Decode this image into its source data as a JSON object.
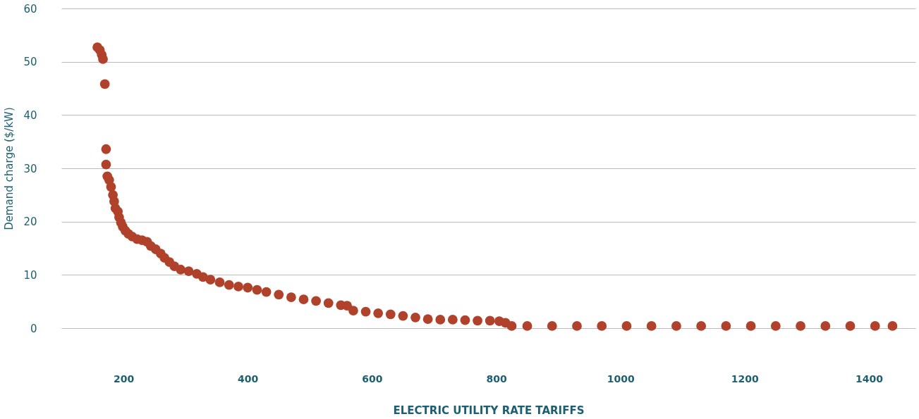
{
  "chart_data": {
    "type": "scatter",
    "xlabel": "ELECTRIC UTILITY RATE TARIFFS",
    "ylabel": "Demand charge ($/kW)",
    "x": [
      158,
      162,
      165,
      167,
      170,
      172,
      172,
      174,
      177,
      180,
      183,
      185,
      187,
      191,
      193,
      196,
      199,
      203,
      208,
      214,
      222,
      230,
      238,
      244,
      252,
      260,
      266,
      274,
      282,
      292,
      305,
      318,
      328,
      340,
      355,
      370,
      385,
      400,
      415,
      430,
      450,
      470,
      490,
      510,
      530,
      550,
      560,
      570,
      590,
      610,
      630,
      650,
      670,
      690,
      710,
      730,
      750,
      770,
      790,
      805,
      815,
      825,
      850,
      890,
      930,
      970,
      1010,
      1050,
      1090,
      1130,
      1170,
      1210,
      1250,
      1290,
      1330,
      1370,
      1410,
      1438
    ],
    "series": [
      {
        "color": "#b0412a",
        "values": [
          52.7,
          52.2,
          51.3,
          50.5,
          45.8,
          33.6,
          30.7,
          28.5,
          27.8,
          26.5,
          25,
          23.8,
          22.5,
          21.9,
          20.8,
          19.8,
          19,
          18.3,
          17.7,
          17.2,
          16.7,
          16.5,
          16.2,
          15.4,
          14.8,
          14.0,
          13.2,
          12.4,
          11.6,
          11.0,
          10.7,
          10.2,
          9.6,
          9.1,
          8.6,
          8.1,
          7.8,
          7.6,
          7.2,
          6.8,
          6.3,
          5.8,
          5.4,
          5.1,
          4.7,
          4.3,
          4.2,
          3.3,
          3.1,
          2.8,
          2.6,
          2.3,
          2.0,
          1.7,
          1.6,
          1.6,
          1.5,
          1.4,
          1.4,
          1.3,
          1.0,
          0.4,
          0.4,
          0.4,
          0.4,
          0.4,
          0.4,
          0.4,
          0.4,
          0.4,
          0.4,
          0.4,
          0.4,
          0.4,
          0.4,
          0.4,
          0.4,
          0.4
        ]
      }
    ],
    "xlim": [
      100,
      1475
    ],
    "xticks": [
      200,
      400,
      600,
      800,
      1000,
      1200,
      1400
    ],
    "ylim": [
      0,
      60
    ],
    "yticks": [
      0,
      10,
      20,
      30,
      40,
      50,
      60
    ],
    "grid": "y",
    "marker": "circle",
    "legend": false
  }
}
